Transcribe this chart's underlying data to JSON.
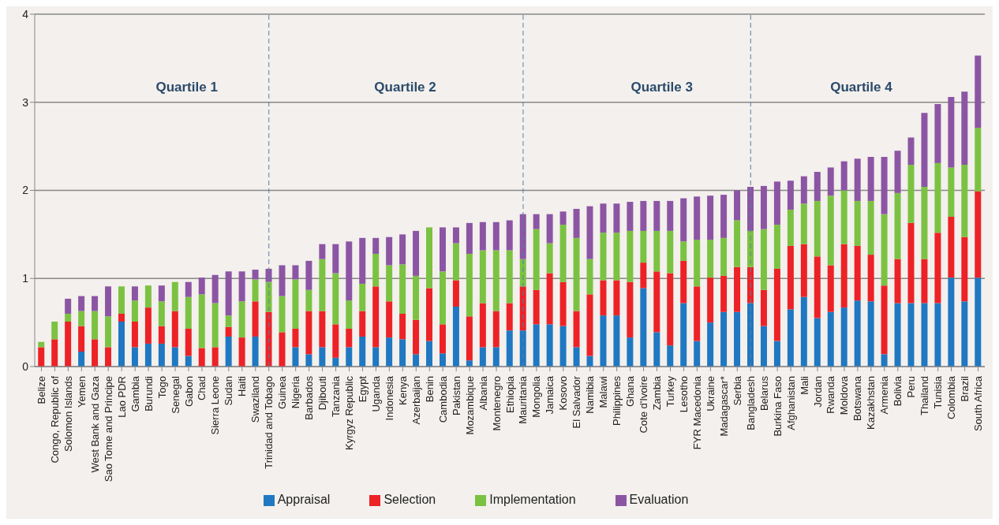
{
  "chart_data": {
    "type": "bar",
    "stacked": true,
    "categories": [
      "Belize",
      "Congo, Republic of",
      "Solomon Islands",
      "Yemen",
      "West Bank and Gaza",
      "Sao Tome and Principe",
      "Lao PDR",
      "Gambia",
      "Burundi",
      "Togo",
      "Senegal",
      "Gabon",
      "Chad",
      "Sierra Leone",
      "Sudan",
      "Haiti",
      "Swaziland",
      "Trinidad and Tobago",
      "Guinea",
      "Nigeria",
      "Barbados",
      "Djibouti",
      "Tanzania",
      "Kyrgyz Republic",
      "Egypt",
      "Uganda",
      "Indonesia",
      "Kenya",
      "Azerbaijan",
      "Benin",
      "Cambodia",
      "Pakistan",
      "Mozambique",
      "Albania",
      "Montenegro",
      "Ethiopia",
      "Mauritania",
      "Mongolia",
      "Jamaica",
      "Kosovo",
      "El Salvador",
      "Namibia",
      "Malawi",
      "Philippines",
      "Ghana",
      "Cote d'Ivoire",
      "Zambia",
      "Turkey",
      "Lesotho",
      "FYR Macedonia",
      "Ukraine",
      "Madagascar*",
      "Serbia",
      "Bangladesh",
      "Belarus",
      "Burkina Faso",
      "Afghanistan",
      "Mali",
      "Jordan",
      "Rwanda",
      "Moldova",
      "Botswana",
      "Kazakhstan",
      "Armenia",
      "Bolivia",
      "Peru",
      "Thailand",
      "Tunisia",
      "Colombia",
      "Brazil",
      "South Africa"
    ],
    "series": [
      {
        "name": "Appraisal",
        "color": "#1f78c1",
        "values": [
          0,
          0,
          0,
          0.17,
          0,
          0,
          0.51,
          0.22,
          0.26,
          0.26,
          0.22,
          0.12,
          0,
          0,
          0.34,
          0,
          0.34,
          0,
          0,
          0.22,
          0.14,
          0.22,
          0.1,
          0.22,
          0.34,
          0.22,
          0.33,
          0.31,
          0.14,
          0.29,
          0.15,
          0.68,
          0.07,
          0.22,
          0.22,
          0.41,
          0.41,
          0.48,
          0.48,
          0.46,
          0.22,
          0.12,
          0.58,
          0.58,
          0.33,
          0.89,
          0.39,
          0.24,
          0.72,
          0.29,
          0.5,
          0.62,
          0.62,
          0.72,
          0.46,
          0.29,
          0.65,
          0.79,
          0.55,
          0.62,
          0.67,
          0.75,
          0.74,
          0.14,
          0.72,
          0.72,
          0.72,
          0.72,
          1.01,
          0.74,
          1.01
        ]
      },
      {
        "name": "Selection",
        "color": "#ec2227",
        "values": [
          0.22,
          0.31,
          0.51,
          0.29,
          0.31,
          0.22,
          0.09,
          0.29,
          0.41,
          0.2,
          0.41,
          0.31,
          0.21,
          0.22,
          0.11,
          0.33,
          0.4,
          0.62,
          0.39,
          0.21,
          0.49,
          0.41,
          0.38,
          0.21,
          0.29,
          0.69,
          0.41,
          0.29,
          0.39,
          0.6,
          0.33,
          0.3,
          0.5,
          0.5,
          0.41,
          0.31,
          0.5,
          0.39,
          0.58,
          0.5,
          0.41,
          0.7,
          0.4,
          0.4,
          0.63,
          0.29,
          0.69,
          0.82,
          0.48,
          0.62,
          0.51,
          0.41,
          0.51,
          0.41,
          0.41,
          0.82,
          0.72,
          0.6,
          0.7,
          0.53,
          0.72,
          0.62,
          0.53,
          0.78,
          0.5,
          0.91,
          0.5,
          0.8,
          0.69,
          0.73,
          0.98
        ]
      },
      {
        "name": "Implementation",
        "color": "#7cc242",
        "values": [
          0.06,
          0.2,
          0.09,
          0.17,
          0.32,
          0.35,
          0.31,
          0.24,
          0.25,
          0.28,
          0.33,
          0.36,
          0.61,
          0.5,
          0.13,
          0.41,
          0.25,
          0.34,
          0.41,
          0.56,
          0.24,
          0.59,
          0.58,
          0.32,
          0.31,
          0.37,
          0.41,
          0.56,
          0.5,
          0.69,
          0.6,
          0.42,
          0.71,
          0.6,
          0.69,
          0.6,
          0.31,
          0.69,
          0.34,
          0.65,
          0.83,
          0.4,
          0.54,
          0.54,
          0.58,
          0.36,
          0.46,
          0.48,
          0.22,
          0.53,
          0.43,
          0.43,
          0.53,
          0.41,
          0.69,
          0.5,
          0.41,
          0.46,
          0.63,
          0.79,
          0.61,
          0.51,
          0.61,
          0.81,
          0.75,
          0.66,
          0.82,
          0.79,
          0.56,
          0.82,
          0.72
        ]
      },
      {
        "name": "Evaluation",
        "color": "#8c55a4",
        "values": [
          0,
          0,
          0.17,
          0.17,
          0.17,
          0.34,
          0,
          0.16,
          0,
          0.18,
          0,
          0.17,
          0.19,
          0.32,
          0.5,
          0.34,
          0.11,
          0.15,
          0.35,
          0.16,
          0.33,
          0.17,
          0.33,
          0.67,
          0.52,
          0.18,
          0.32,
          0.34,
          0.51,
          0,
          0.5,
          0.18,
          0.35,
          0.32,
          0.32,
          0.34,
          0.51,
          0.17,
          0.33,
          0.15,
          0.33,
          0.6,
          0.33,
          0.33,
          0.33,
          0.34,
          0.34,
          0.34,
          0.49,
          0.49,
          0.5,
          0.49,
          0.34,
          0.5,
          0.49,
          0.49,
          0.33,
          0.31,
          0.33,
          0.32,
          0.33,
          0.48,
          0.5,
          0.65,
          0.48,
          0.31,
          0.84,
          0.67,
          0.8,
          0.83,
          0.82
        ]
      }
    ],
    "ylim": [
      0,
      4
    ],
    "yticks": [
      0,
      1,
      2,
      3,
      4
    ],
    "grid": "y",
    "legend": "bottom",
    "ref_lines": [
      {
        "axis": "x",
        "value": "Trinidad and Tobago",
        "color": "#5a7fa0",
        "line_style": "dashed"
      },
      {
        "axis": "x",
        "value": "Mauritania",
        "color": "#5a7fa0",
        "line_style": "dashed"
      },
      {
        "axis": "x",
        "value": "Bangladesh",
        "color": "#5a7fa0",
        "line_style": "dashed"
      }
    ],
    "annotations": [
      "Quartile 1",
      "Quartile 2",
      "Quartile 3",
      "Quartile 4"
    ]
  }
}
